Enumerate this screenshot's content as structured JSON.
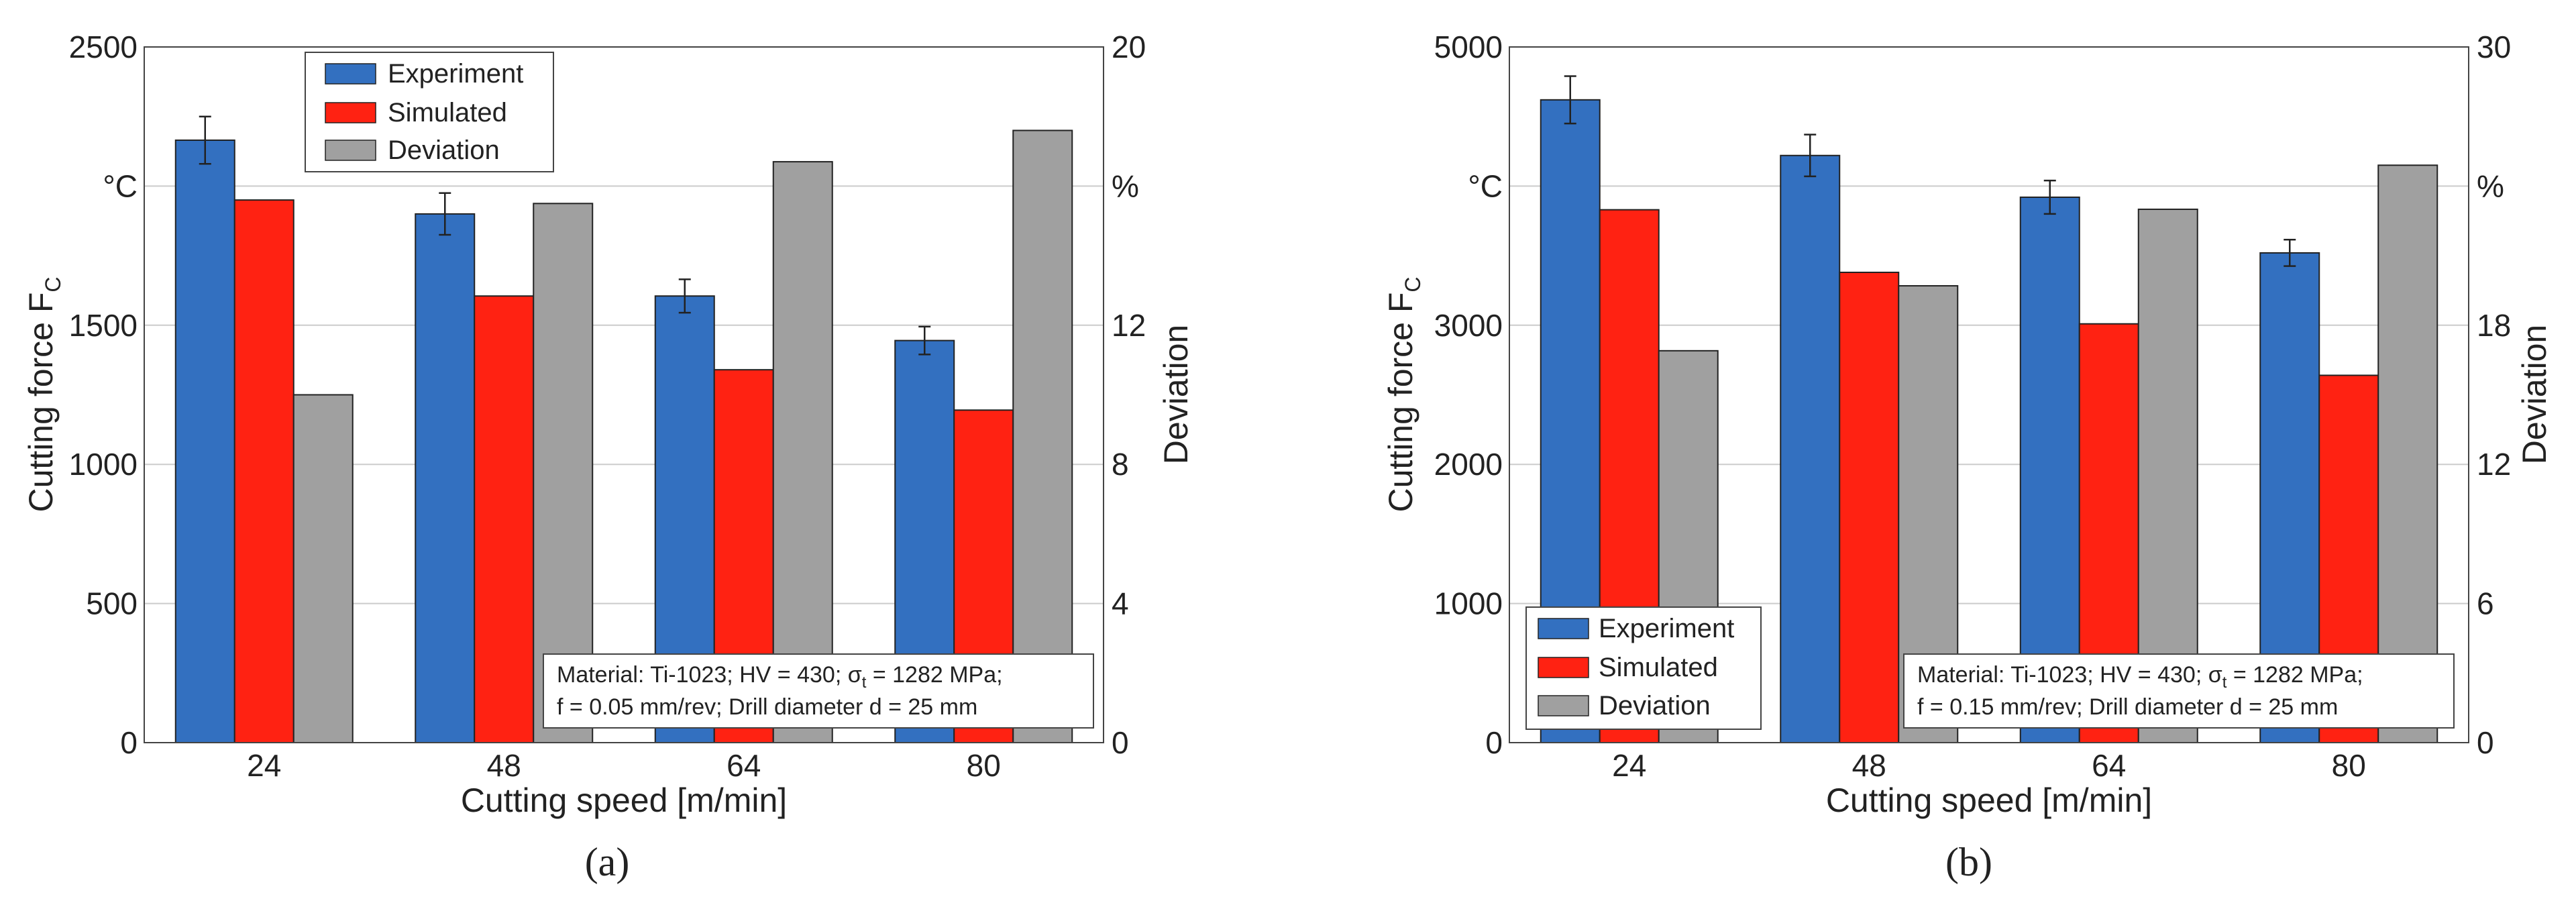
{
  "figure": {
    "panel_labels": [
      "(a)",
      "(b)"
    ]
  },
  "colors": {
    "Experiment": "#3370C0",
    "Simulated": "#FF2212",
    "Deviation": "#A0A0A0",
    "grid": "#CCCCCC"
  },
  "chart_data": [
    {
      "type": "bar",
      "panel_label": "(a)",
      "categories": [
        "24",
        "48",
        "64",
        "80"
      ],
      "series": [
        {
          "name": "Experiment",
          "axis": "left",
          "values": [
            2165,
            1900,
            1605,
            1445
          ],
          "errors": [
            85,
            75,
            60,
            50
          ]
        },
        {
          "name": "Simulated",
          "axis": "left",
          "values": [
            1950,
            1605,
            1340,
            1195
          ]
        },
        {
          "name": "Deviation",
          "axis": "right",
          "values": [
            10.0,
            15.5,
            16.7,
            17.6
          ]
        }
      ],
      "xlabel": "Cutting speed [m/min]",
      "ylabel": "Cutting force F",
      "ylabel_sub": "C",
      "y2label": "Deviation",
      "ylim": [
        0,
        2500
      ],
      "y2lim": [
        0,
        20
      ],
      "yticks": [
        "0",
        "500",
        "1000",
        "1500",
        "°C",
        "2500"
      ],
      "y2ticks": [
        "0",
        "4",
        "8",
        "12",
        "%",
        "20"
      ],
      "grid": true,
      "legend": {
        "position": "top-left",
        "entries": [
          "Experiment",
          "Simulated",
          "Deviation"
        ]
      },
      "annotation": {
        "line1_a": "Material: Ti-1023; HV = 430; σ",
        "line1_sub": "t",
        "line1_b": " = 1282 MPa;",
        "line2": "f = 0.05 mm/rev; Drill diameter d = 25 mm"
      }
    },
    {
      "type": "bar",
      "panel_label": "(b)",
      "categories": [
        "24",
        "48",
        "64",
        "80"
      ],
      "series": [
        {
          "name": "Experiment",
          "axis": "left",
          "values": [
            4620,
            4220,
            3920,
            3520
          ],
          "errors": [
            170,
            150,
            120,
            95
          ]
        },
        {
          "name": "Simulated",
          "axis": "left",
          "values": [
            3830,
            3380,
            3010,
            2640
          ]
        },
        {
          "name": "Deviation",
          "axis": "right",
          "values": [
            16.9,
            19.7,
            23.0,
            24.9
          ]
        }
      ],
      "xlabel": "Cutting speed [m/min]",
      "ylabel": "Cutting force F",
      "ylabel_sub": "C",
      "y2label": "Deviation",
      "ylim": [
        0,
        5000
      ],
      "y2lim": [
        0,
        30
      ],
      "yticks": [
        "0",
        "1000",
        "2000",
        "3000",
        "°C",
        "5000"
      ],
      "y2ticks": [
        "0",
        "6",
        "12",
        "18",
        "%",
        "30"
      ],
      "grid": true,
      "legend": {
        "position": "bottom-left",
        "entries": [
          "Experiment",
          "Simulated",
          "Deviation"
        ]
      },
      "annotation": {
        "line1_a": "Material: Ti-1023; HV = 430; σ",
        "line1_sub": "t",
        "line1_b": " = 1282 MPa;",
        "line2": "f = 0.15 mm/rev; Drill diameter d = 25 mm"
      }
    }
  ]
}
